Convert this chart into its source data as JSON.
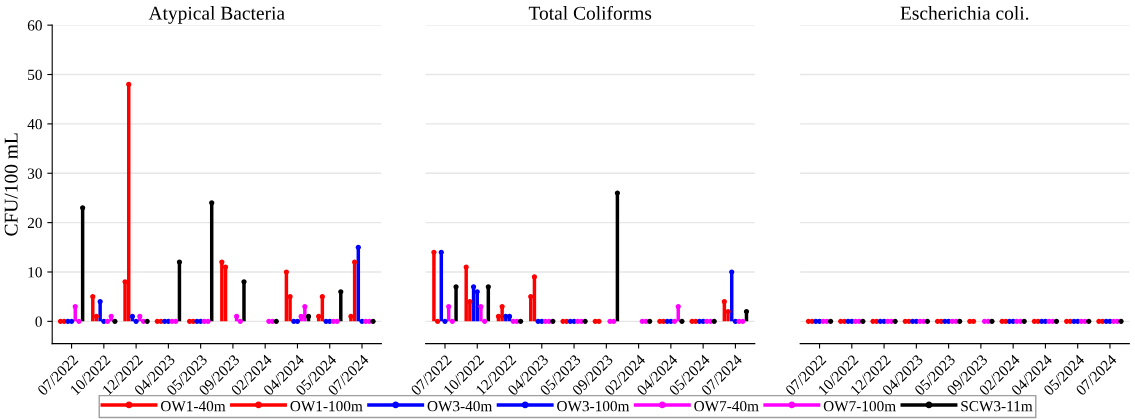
{
  "chart_data": [
    {
      "type": "lollipop",
      "title": "Atypical Bacteria",
      "ylabel": "CFU/100 mL",
      "categories": [
        "07/2022",
        "10/2022",
        "12/2022",
        "04/2023",
        "05/2023",
        "09/2023",
        "02/2024",
        "04/2024",
        "05/2024",
        "07/2024"
      ],
      "ylim": [
        -4.5,
        60
      ],
      "yticks": [
        0,
        10,
        20,
        30,
        40,
        50,
        60
      ],
      "grid": "y",
      "marker": "circle",
      "legend": "bottom",
      "series": [
        {
          "name": "OW1-40m",
          "color": "#ff0000",
          "values": [
            0,
            5,
            8,
            0,
            0,
            12,
            null,
            10,
            1,
            1
          ]
        },
        {
          "name": "OW1-100m",
          "color": "#ff0000",
          "values": [
            0,
            1,
            48,
            0,
            0,
            11,
            null,
            5,
            5,
            12
          ]
        },
        {
          "name": "OW3-40m",
          "color": "#0000ff",
          "values": [
            0,
            4,
            1,
            0,
            0,
            null,
            null,
            0,
            0,
            15
          ]
        },
        {
          "name": "OW3-100m",
          "color": "#0000ff",
          "values": [
            0,
            0,
            0,
            0,
            0,
            null,
            null,
            0,
            0,
            0
          ]
        },
        {
          "name": "OW7-40m",
          "color": "#ff00ff",
          "values": [
            3,
            0,
            1,
            0,
            0,
            1,
            0,
            1,
            0,
            0
          ]
        },
        {
          "name": "OW7-100m",
          "color": "#ff00ff",
          "values": [
            0,
            1,
            0,
            0,
            0,
            0,
            0,
            3,
            0,
            0
          ]
        },
        {
          "name": "SCW3-11m",
          "color": "#000000",
          "values": [
            23,
            0,
            0,
            12,
            24,
            8,
            0,
            1,
            6,
            0
          ]
        }
      ]
    },
    {
      "type": "lollipop",
      "title": "Total Coliforms",
      "categories": [
        "07/2022",
        "10/2022",
        "12/2022",
        "04/2023",
        "05/2023",
        "09/2023",
        "02/2024",
        "04/2024",
        "05/2024",
        "07/2024"
      ],
      "ylim": [
        -4.5,
        60
      ],
      "yticks": [
        0,
        10,
        20,
        30,
        40,
        50,
        60
      ],
      "grid": "y",
      "marker": "circle",
      "tick_labels": "x",
      "series": [
        {
          "color": "#ff0000",
          "values": [
            14,
            11,
            1,
            5,
            0,
            0,
            null,
            0,
            0,
            4
          ]
        },
        {
          "color": "#ff0000",
          "values": [
            0,
            4,
            3,
            9,
            0,
            0,
            null,
            0,
            0,
            2
          ]
        },
        {
          "color": "#0000ff",
          "values": [
            14,
            7,
            1,
            0,
            0,
            null,
            null,
            0,
            0,
            10
          ]
        },
        {
          "color": "#0000ff",
          "values": [
            0,
            6,
            1,
            0,
            0,
            null,
            null,
            0,
            0,
            0
          ]
        },
        {
          "color": "#ff00ff",
          "values": [
            3,
            3,
            0,
            0,
            0,
            0,
            0,
            0,
            0,
            0
          ]
        },
        {
          "color": "#ff00ff",
          "values": [
            0,
            0,
            0,
            0,
            0,
            0,
            0,
            3,
            0,
            0
          ]
        },
        {
          "color": "#000000",
          "values": [
            7,
            7,
            0,
            0,
            0,
            26,
            0,
            0,
            0,
            2
          ]
        }
      ]
    },
    {
      "type": "lollipop",
      "title": "Escherichia coli.",
      "categories": [
        "07/2022",
        "10/2022",
        "12/2022",
        "04/2023",
        "05/2023",
        "09/2023",
        "02/2024",
        "04/2024",
        "05/2024",
        "07/2024"
      ],
      "ylim": [
        -4.5,
        60
      ],
      "yticks": [
        0,
        10,
        20,
        30,
        40,
        50,
        60
      ],
      "grid": "y",
      "marker": "circle",
      "tick_labels": "x",
      "series": [
        {
          "color": "#ff0000",
          "values": [
            0,
            0,
            0,
            0,
            0,
            0,
            0,
            0,
            0,
            0
          ]
        },
        {
          "color": "#ff0000",
          "values": [
            0,
            0,
            0,
            0,
            0,
            0,
            0,
            0,
            0,
            0
          ]
        },
        {
          "color": "#0000ff",
          "values": [
            0,
            0,
            0,
            0,
            0,
            null,
            0,
            0,
            0,
            0
          ]
        },
        {
          "color": "#0000ff",
          "values": [
            0,
            0,
            0,
            0,
            0,
            null,
            0,
            0,
            0,
            0
          ]
        },
        {
          "color": "#ff00ff",
          "values": [
            0,
            0,
            0,
            0,
            0,
            0,
            0,
            0,
            0,
            0
          ]
        },
        {
          "color": "#ff00ff",
          "values": [
            0,
            0,
            0,
            0,
            0,
            0,
            0,
            0,
            0,
            0
          ]
        },
        {
          "color": "#000000",
          "values": [
            0,
            0,
            0,
            0,
            0,
            0,
            0,
            0,
            0,
            0
          ]
        }
      ]
    }
  ]
}
